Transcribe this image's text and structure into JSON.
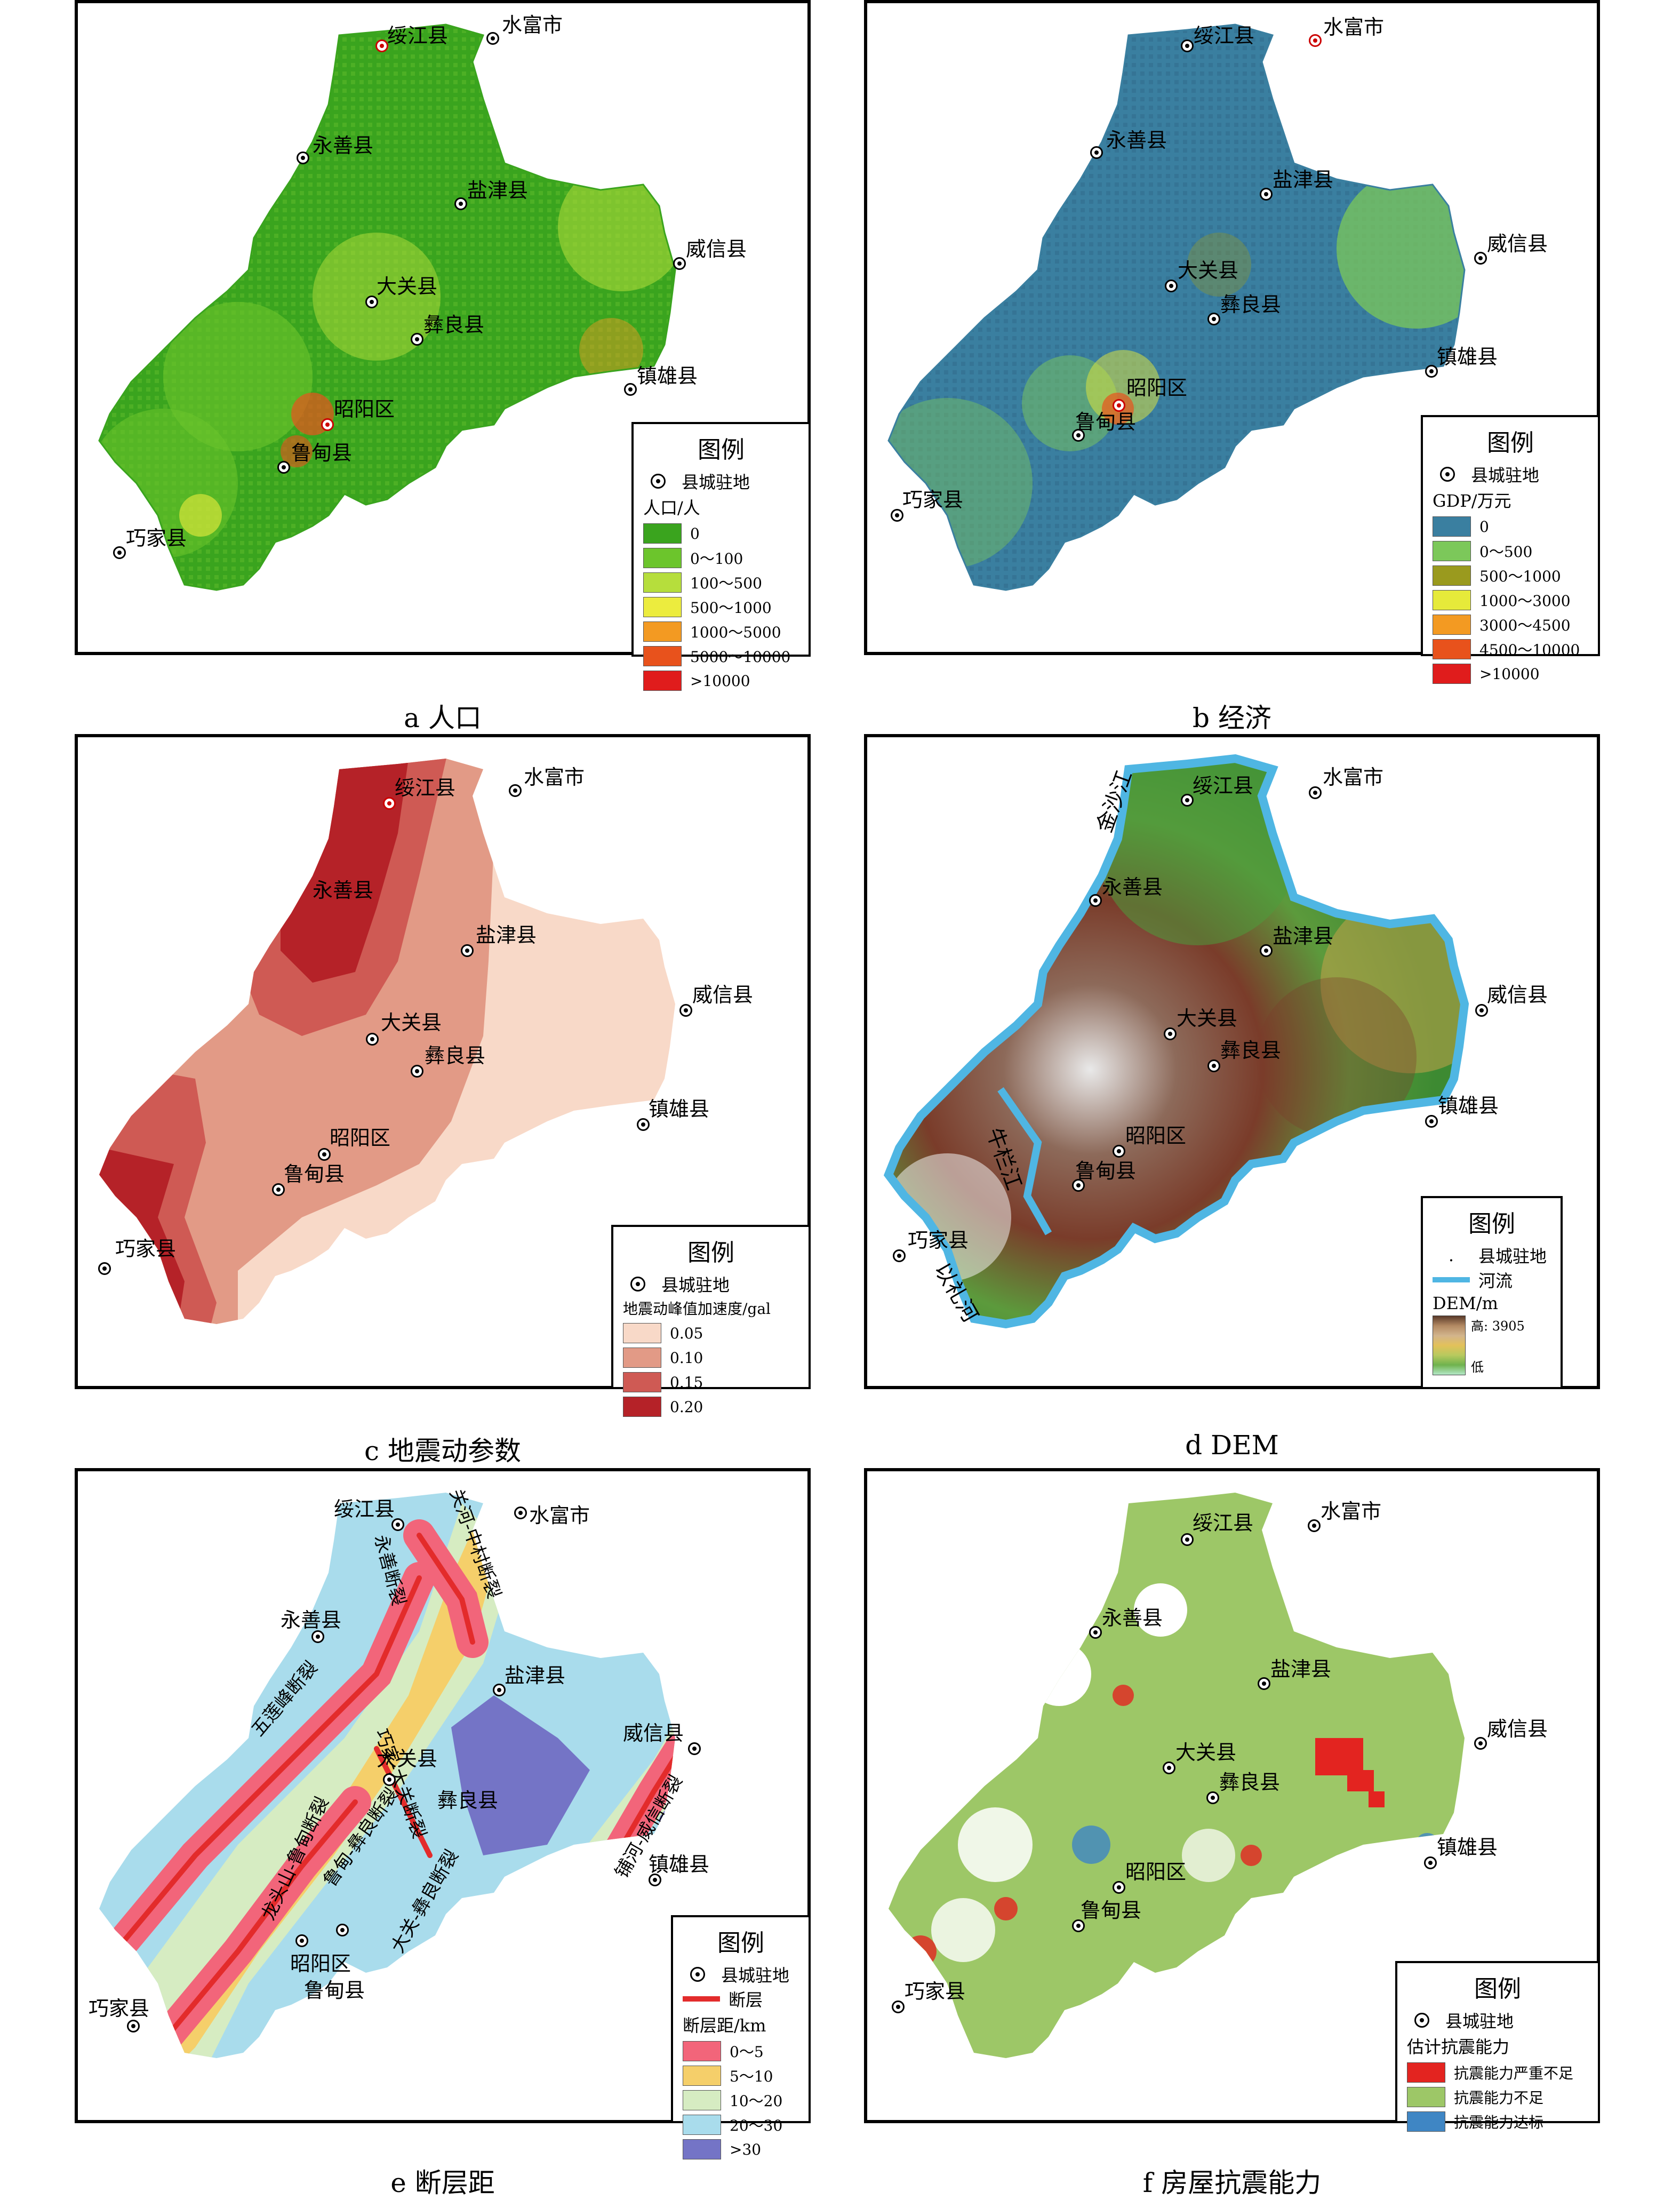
{
  "panels": [
    {
      "id": "a",
      "caption": "a 人口",
      "legend_title": "图例",
      "legend_seat_label": "县城驻地",
      "legend_unit": "人口/人",
      "legend_items": [
        {
          "label": "0",
          "color": "#3aa41e"
        },
        {
          "label": "0～100",
          "color": "#6cc52c"
        },
        {
          "label": "100～500",
          "color": "#b6de3c"
        },
        {
          "label": "500～1000",
          "color": "#ecec3e"
        },
        {
          "label": "1000～5000",
          "color": "#f39a22"
        },
        {
          "label": "5000～10000",
          "color": "#e8521c"
        },
        {
          "label": ">10000",
          "color": "#e01c1c"
        }
      ],
      "map_colors": {
        "base": "#3aa41e",
        "accent": "#b6de3c",
        "hot": "#e8521c"
      }
    },
    {
      "id": "b",
      "caption": "b 经济",
      "legend_title": "图例",
      "legend_seat_label": "县城驻地",
      "legend_unit": "GDP/万元",
      "legend_items": [
        {
          "label": "0",
          "color": "#3a7fa0"
        },
        {
          "label": "0～500",
          "color": "#7cc85a"
        },
        {
          "label": "500～1000",
          "color": "#9a9a1e"
        },
        {
          "label": "1000～3000",
          "color": "#e6ea3a"
        },
        {
          "label": "3000～4500",
          "color": "#f39a22"
        },
        {
          "label": "4500～10000",
          "color": "#e8521c"
        },
        {
          "label": ">10000",
          "color": "#e01c1c"
        }
      ],
      "map_colors": {
        "base": "#3a7fa0",
        "accent": "#7cc85a",
        "hot": "#e8521c"
      }
    },
    {
      "id": "c",
      "caption": "c 地震动参数",
      "legend_title": "图例",
      "legend_seat_label": "县城驻地",
      "legend_unit": "地震动峰值加速度/gal",
      "legend_items": [
        {
          "label": "0.05",
          "color": "#f8d9c8"
        },
        {
          "label": "0.10",
          "color": "#e29a86"
        },
        {
          "label": "0.15",
          "color": "#cf5a54"
        },
        {
          "label": "0.20",
          "color": "#b52228"
        }
      ]
    },
    {
      "id": "d",
      "caption": "d DEM",
      "legend_title": "图例",
      "legend_seat_label": "县城驻地",
      "legend_river_label": "河流",
      "legend_unit": "DEM/m",
      "legend_high": "高: 3905",
      "legend_low": "低",
      "rivers": [
        "金沙江",
        "牛栏江",
        "以礼河"
      ]
    },
    {
      "id": "e",
      "caption": "e 断层距",
      "legend_title": "图例",
      "legend_seat_label": "县城驻地",
      "legend_fault_label": "断层",
      "legend_unit": "断层距/km",
      "legend_items": [
        {
          "label": "0～5",
          "color": "#f2657a"
        },
        {
          "label": "5～10",
          "color": "#f5cf6a"
        },
        {
          "label": "10～20",
          "color": "#d6ecc2"
        },
        {
          "label": "20～30",
          "color": "#a9dcec"
        },
        {
          "label": ">30",
          "color": "#7474c6"
        }
      ],
      "faults": [
        "关河-中村断裂",
        "五莲峰断裂",
        "龙头山-鲁甸断裂",
        "鲁甸-彝良断裂",
        "巧家-大关断裂",
        "永善断裂",
        "大关-彝良断裂",
        "铺河-威信断裂"
      ]
    },
    {
      "id": "f",
      "caption": "f 房屋抗震能力",
      "legend_title": "图例",
      "legend_seat_label": "县城驻地",
      "legend_unit": "估计抗震能力",
      "legend_items": [
        {
          "label": "抗震能力严重不足",
          "color": "#e32420"
        },
        {
          "label": "抗震能力不足",
          "color": "#9dc767"
        },
        {
          "label": "抗震能力达标",
          "color": "#3f86c4"
        }
      ]
    }
  ],
  "cities": [
    "绥江县",
    "水富市",
    "永善县",
    "盐津县",
    "威信县",
    "大关县",
    "彝良县",
    "镇雄县",
    "昭阳区",
    "鲁甸县",
    "巧家县"
  ]
}
